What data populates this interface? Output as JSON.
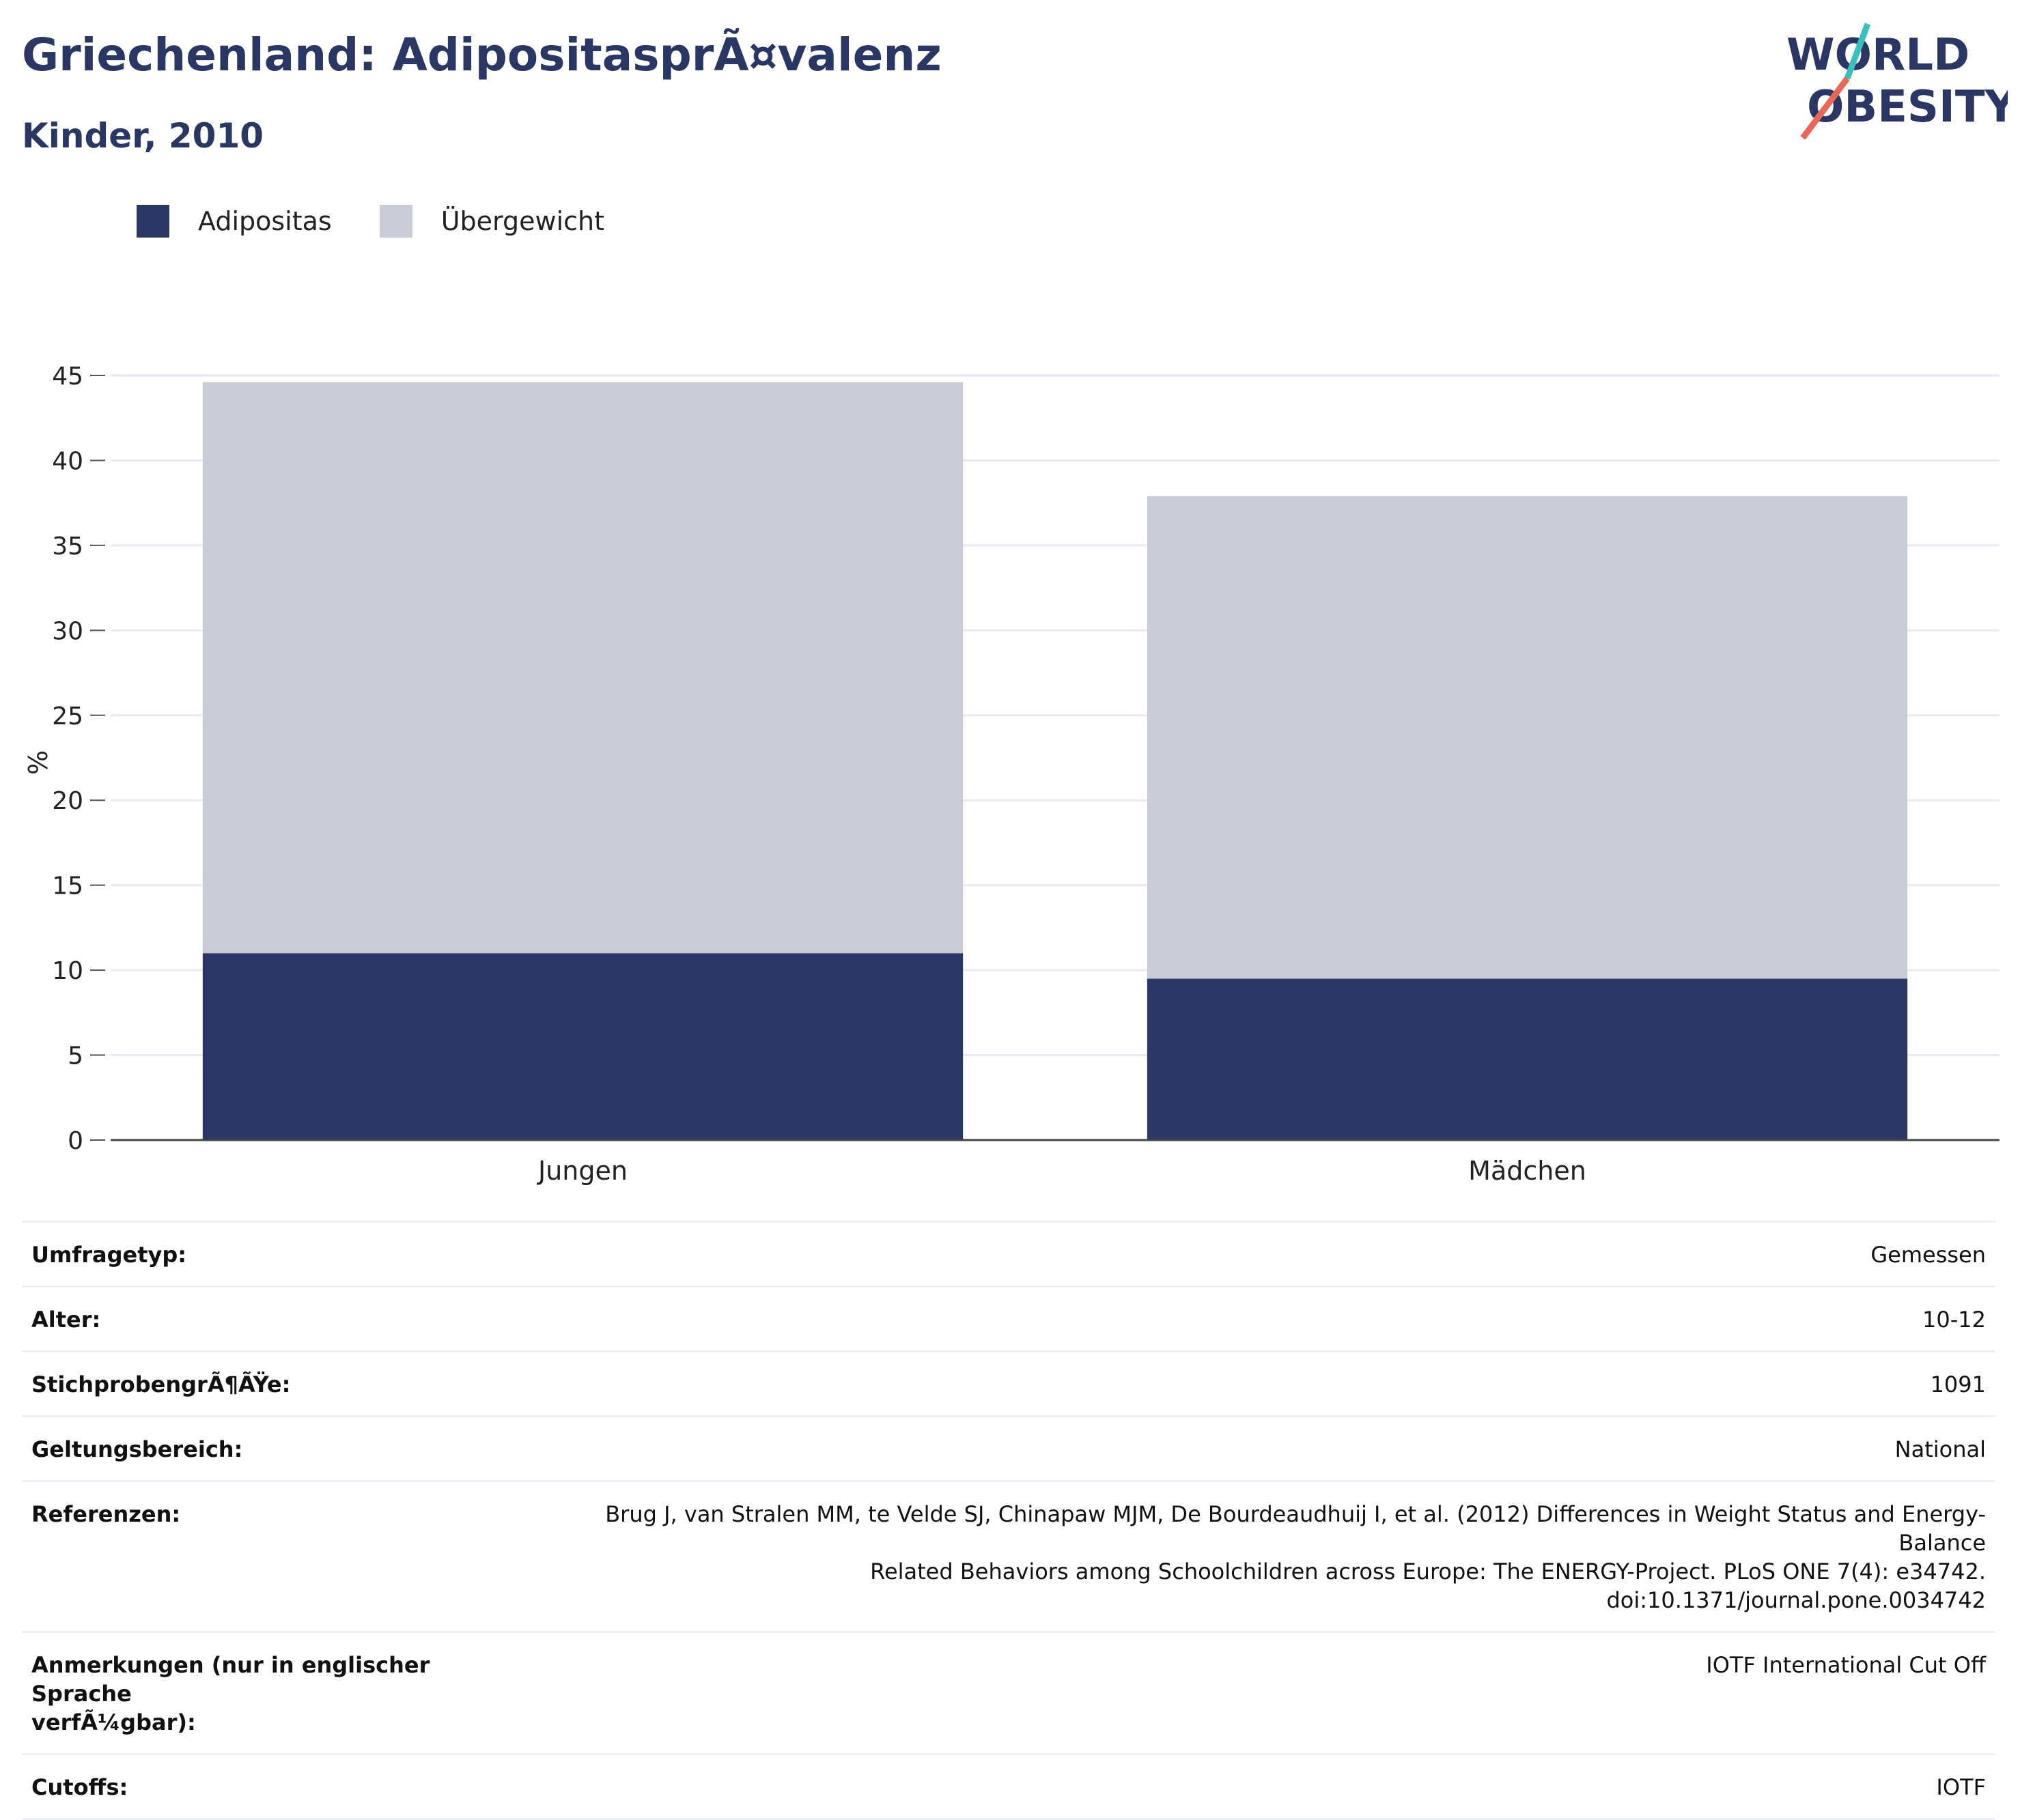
{
  "header": {
    "title": "Griechenland: AdipositasprÃ¤valenz",
    "subtitle": "Kinder, 2010"
  },
  "logo": {
    "line1": "WORLD",
    "line2": "OBESITY",
    "colors": {
      "text": "#2a3663",
      "slash_top": "#3bbfbf",
      "slash_bottom": "#e8685a"
    }
  },
  "legend": [
    {
      "label": "Adipositas",
      "color": "#2a3663"
    },
    {
      "label": "Übergewicht",
      "color": "#c9cbd7"
    }
  ],
  "chart_data": {
    "type": "bar",
    "stacked": true,
    "categories": [
      "Jungen",
      "Mädchen"
    ],
    "series": [
      {
        "name": "Adipositas",
        "color": "#2a3663",
        "values": [
          11.0,
          9.5
        ]
      },
      {
        "name": "Übergewicht",
        "color": "#c9cbd7",
        "values": [
          33.6,
          28.4
        ]
      }
    ],
    "ylabel": "%",
    "ylim": [
      0,
      45
    ],
    "yticks": [
      0,
      5,
      10,
      15,
      20,
      25,
      30,
      35,
      40,
      45
    ],
    "grid": true,
    "legend_position": "top-left"
  },
  "info": [
    {
      "label": "Umfragetyp:",
      "value": [
        "Gemessen"
      ]
    },
    {
      "label": "Alter:",
      "value": [
        "10-12"
      ]
    },
    {
      "label": "StichprobengrÃ¶ÃŸe:",
      "value": [
        "1091"
      ]
    },
    {
      "label": "Geltungsbereich:",
      "value": [
        "National"
      ]
    },
    {
      "label": "Referenzen:",
      "value": [
        "Brug J, van Stralen MM, te Velde SJ, Chinapaw MJM, De Bourdeaudhuij I, et al. (2012) Differences in Weight Status and Energy-Balance",
        "Related Behaviors among Schoolchildren across Europe: The ENERGY-Project. PLoS ONE 7(4): e34742.",
        "doi:10.1371/journal.pone.0034742"
      ]
    },
    {
      "label_lines": [
        "Anmerkungen (nur in englischer Sprache",
        "verfÃ¼gbar):"
      ],
      "value": [
        "IOTF International Cut Off"
      ]
    },
    {
      "label": "Cutoffs:",
      "value": [
        "IOTF"
      ]
    }
  ]
}
